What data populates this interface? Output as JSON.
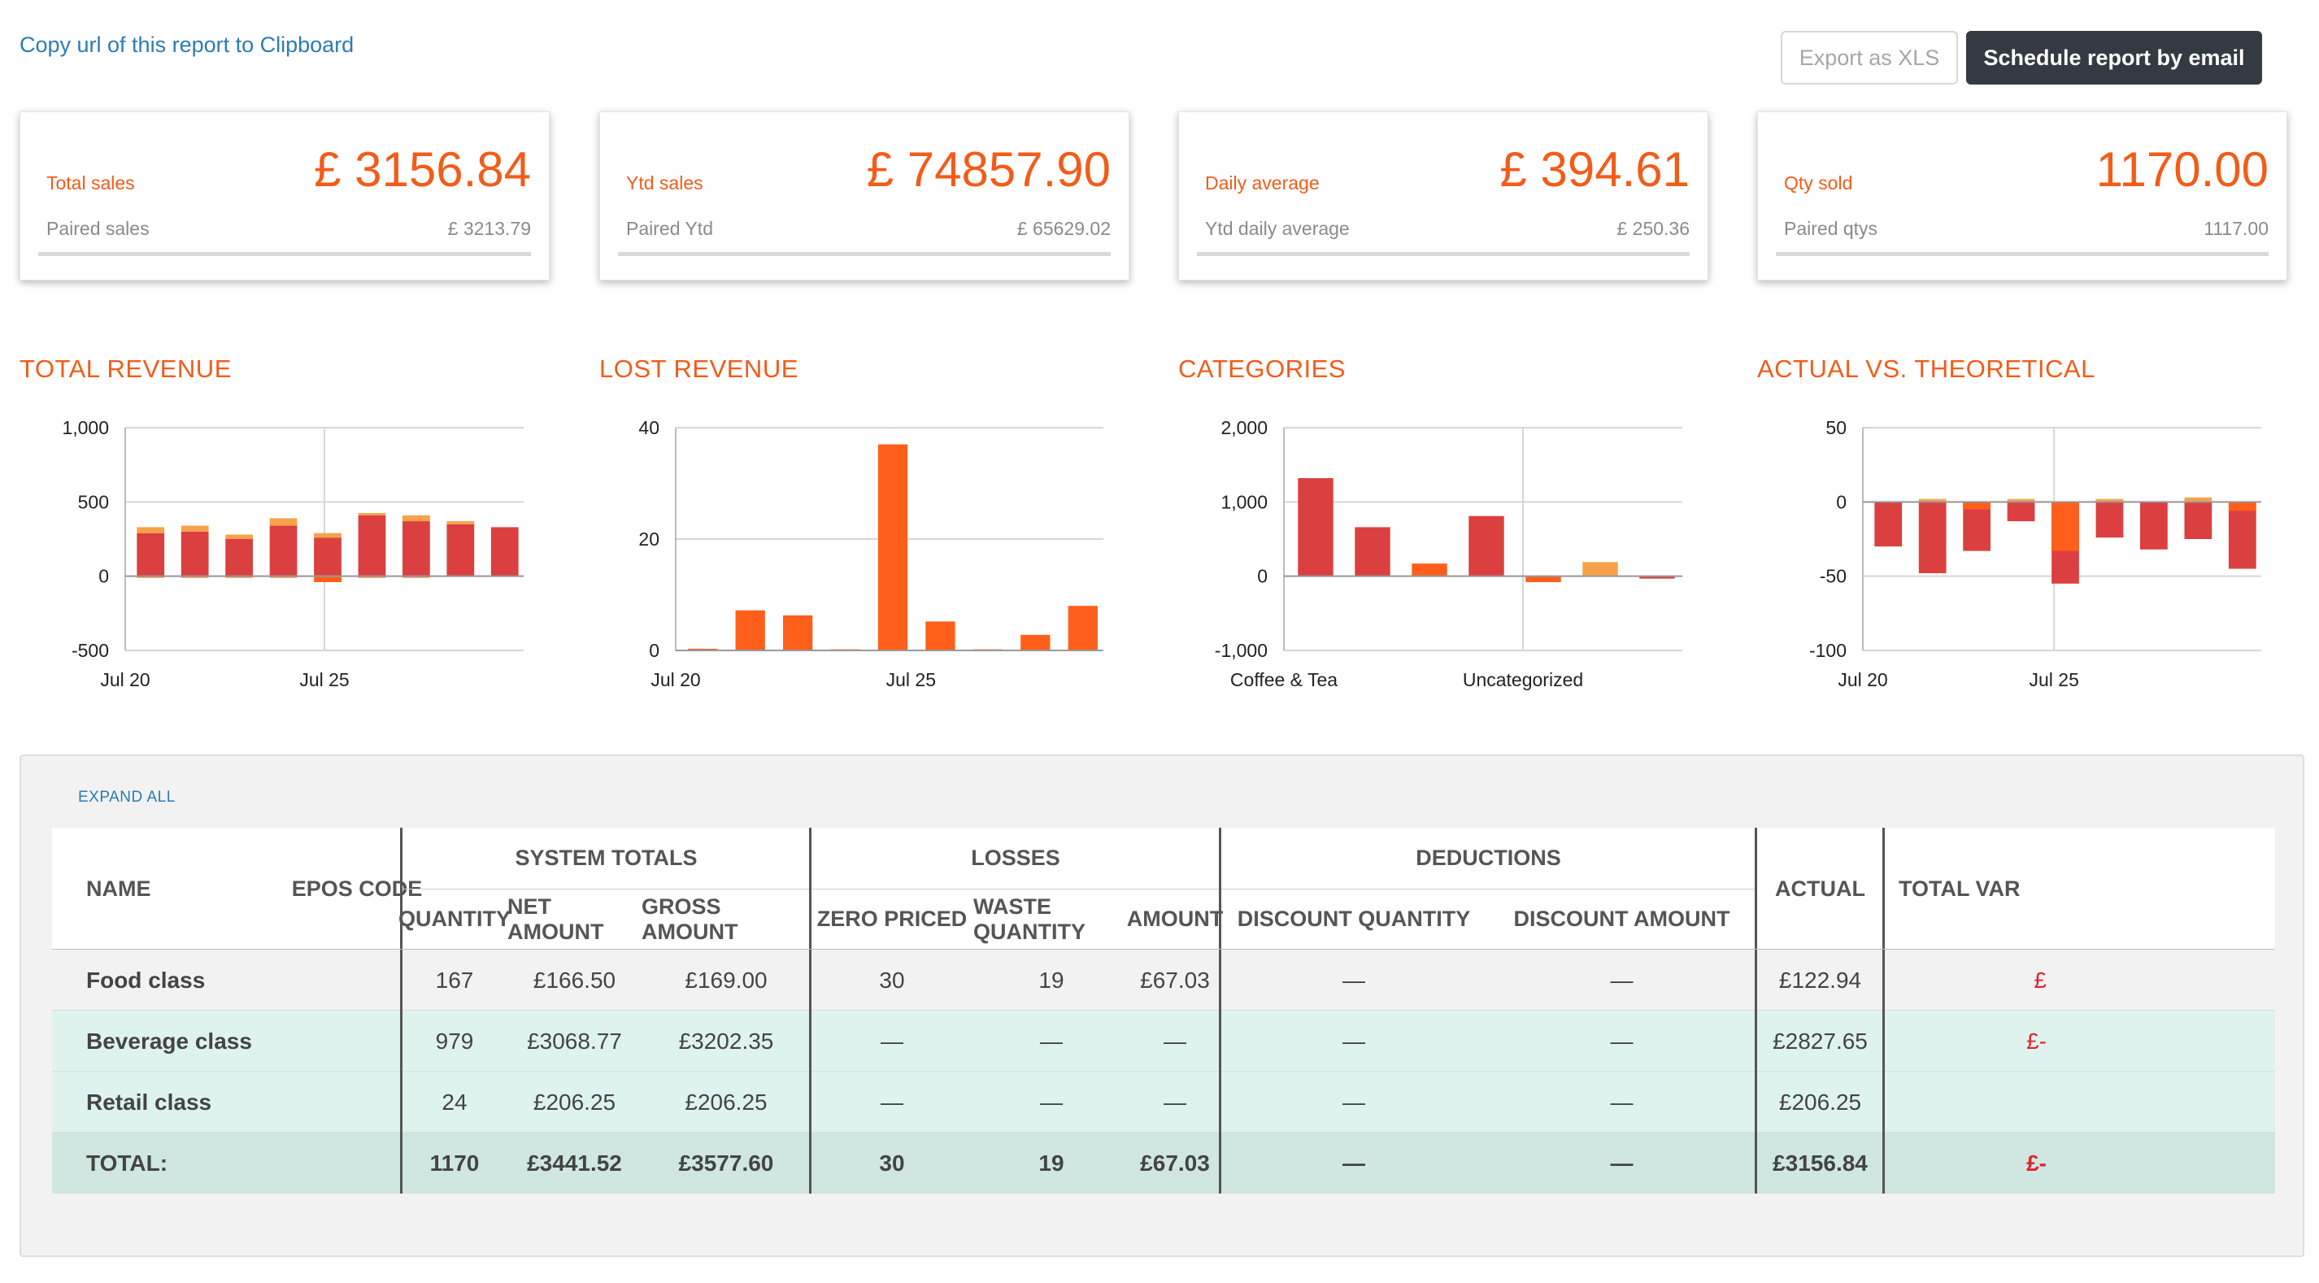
{
  "header": {
    "copy_link": "Copy url of this report to Clipboard",
    "export_label": "Export as XLS",
    "schedule_label": "Schedule report by email"
  },
  "kpis": [
    {
      "label": "Total sales",
      "value": "£ 3156.84",
      "sub_label": "Paired sales",
      "sub_value": "£ 3213.79"
    },
    {
      "label": "Ytd sales",
      "value": "£ 74857.90",
      "sub_label": "Paired Ytd",
      "sub_value": "£ 65629.02"
    },
    {
      "label": "Daily average",
      "value": "£ 394.61",
      "sub_label": "Ytd daily average",
      "sub_value": "£ 250.36"
    },
    {
      "label": "Qty sold",
      "value": "1170.00",
      "sub_label": "Paired qtys",
      "sub_value": "1117.00"
    }
  ],
  "colors": {
    "accent": "#f25c19",
    "dark_red": "#dc3f3f",
    "orange": "#ff5f1a",
    "light_orange": "#f7a24b",
    "button_dark": "#333a42",
    "link": "#2c7bb6",
    "row_teal": "#dff3ee",
    "total_row": "#cfe7e0"
  },
  "chart_data": [
    {
      "type": "bar",
      "title": "TOTAL REVENUE",
      "yticks": [
        "1,000",
        "500",
        "0",
        "-500"
      ],
      "ylim": [
        -500,
        1000
      ],
      "xticks": [
        "Jul 20",
        "Jul 25"
      ],
      "series": [
        {
          "values": [
            290,
            300,
            250,
            340,
            260,
            410,
            370,
            350,
            330
          ]
        },
        {
          "values": [
            40,
            40,
            30,
            50,
            30,
            15,
            40,
            20,
            0
          ]
        }
      ],
      "negatives": [
        -10,
        -10,
        -10,
        -10,
        -40,
        -10,
        -10,
        0,
        0
      ]
    },
    {
      "type": "bar",
      "title": "LOST REVENUE",
      "yticks": [
        "40",
        "20",
        "0"
      ],
      "ylim": [
        0,
        40
      ],
      "xticks": [
        "Jul 20",
        "Jul 25"
      ],
      "series": [
        {
          "values": [
            0.3,
            7.2,
            6.3,
            0.2,
            37,
            5.2,
            0.2,
            2.8,
            8
          ]
        }
      ]
    },
    {
      "type": "bar",
      "title": "CATEGORIES",
      "yticks": [
        "2,000",
        "1,000",
        "0",
        "-1,000"
      ],
      "ylim": [
        -1000,
        2000
      ],
      "xticks": [
        "Coffee & Tea",
        "Uncategorized"
      ],
      "series": [
        {
          "values": [
            1320,
            660,
            170,
            810,
            -80,
            190,
            -20
          ]
        }
      ]
    },
    {
      "type": "bar",
      "title": "ACTUAL VS. THEORETICAL",
      "yticks": [
        "50",
        "0",
        "-50",
        "-100"
      ],
      "ylim": [
        -100,
        50
      ],
      "xticks": [
        "Jul 20",
        "Jul 25"
      ],
      "series": [
        {
          "values": [
            -30,
            -48,
            -33,
            -13,
            -55,
            -24,
            -32,
            -25,
            -45
          ]
        },
        {
          "values": [
            0,
            2,
            -5,
            2,
            -33,
            2,
            0,
            3,
            -6
          ]
        }
      ]
    }
  ],
  "table": {
    "expand_all": "EXPAND ALL",
    "groups": {
      "system": "SYSTEM TOTALS",
      "losses": "LOSSES",
      "deductions": "DEDUCTIONS"
    },
    "columns": {
      "name": "NAME",
      "epos": "EPOS CODE",
      "quantity": "QUANTITY",
      "net": "NET AMOUNT",
      "gross": "GROSS AMOUNT",
      "zero": "ZERO PRICED",
      "waste": "WASTE QUANTITY",
      "amount": "AMOUNT",
      "disc_qty": "DISCOUNT QUANTITY",
      "disc_amt": "DISCOUNT AMOUNT",
      "actual": "ACTUAL",
      "total_var": "TOTAL VAR"
    },
    "rows": [
      {
        "name": "Food class",
        "quantity": "167",
        "net": "£166.50",
        "gross": "£169.00",
        "zero": "30",
        "waste": "19",
        "amount": "£67.03",
        "disc_qty": "—",
        "disc_amt": "—",
        "actual": "£122.94",
        "total_var": "£"
      },
      {
        "name": "Beverage class",
        "quantity": "979",
        "net": "£3068.77",
        "gross": "£3202.35",
        "zero": "—",
        "waste": "—",
        "amount": "—",
        "disc_qty": "—",
        "disc_amt": "—",
        "actual": "£2827.65",
        "total_var": "£-"
      },
      {
        "name": "Retail class",
        "quantity": "24",
        "net": "£206.25",
        "gross": "£206.25",
        "zero": "—",
        "waste": "—",
        "amount": "—",
        "disc_qty": "—",
        "disc_amt": "—",
        "actual": "£206.25",
        "total_var": ""
      },
      {
        "name": "TOTAL:",
        "quantity": "1170",
        "net": "£3441.52",
        "gross": "£3577.60",
        "zero": "30",
        "waste": "19",
        "amount": "£67.03",
        "disc_qty": "—",
        "disc_amt": "—",
        "actual": "£3156.84",
        "total_var": "£-"
      }
    ]
  }
}
